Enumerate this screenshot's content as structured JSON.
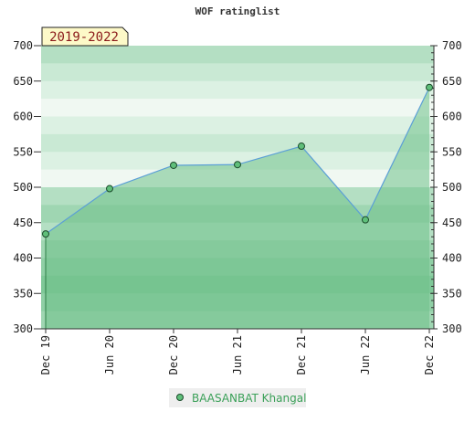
{
  "chart_data": {
    "type": "area",
    "title": "WOF ratinglist",
    "period_label": "2019-2022",
    "x_ticks": [
      "Dec 19",
      "Jun 20",
      "Dec 20",
      "Jun 21",
      "Dec 21",
      "Jun 22",
      "Dec 22"
    ],
    "y_ticks": [
      300,
      350,
      400,
      450,
      500,
      550,
      600,
      650,
      700
    ],
    "ylim": [
      300,
      700
    ],
    "series": [
      {
        "name": "BAASANBAT Khangal",
        "x": [
          "Dec 19",
          "Jun 20",
          "Dec 20",
          "Jun 21",
          "Dec 21",
          "Jun 22",
          "Dec 22"
        ],
        "values": [
          434,
          498,
          531,
          532,
          558,
          454,
          641
        ]
      }
    ],
    "colors": {
      "line": "#5b9fd6",
      "fill": "#6fc18a",
      "marker": "#5fbf7a",
      "legend_text": "#3aa058",
      "label_bg": "#fdf9c8"
    }
  }
}
